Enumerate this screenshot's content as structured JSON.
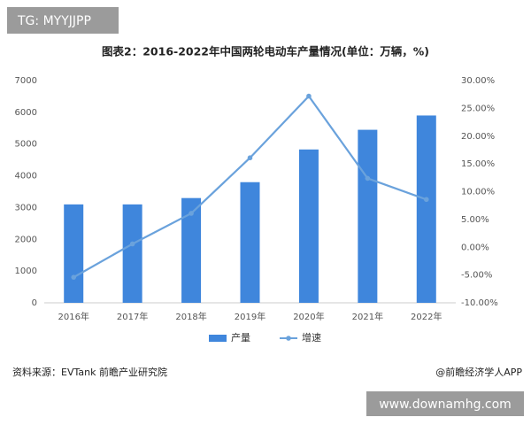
{
  "chart_data": {
    "type": "bar_line",
    "title": "图表2：2016-2022年中国两轮电动车产量情况(单位：万辆，%)",
    "categories": [
      "2016年",
      "2017年",
      "2018年",
      "2019年",
      "2020年",
      "2021年",
      "2022年"
    ],
    "series": [
      {
        "name": "产量",
        "color": "#3f86dc",
        "type": "bar",
        "values": [
          3100,
          3100,
          3300,
          3800,
          4830,
          5450,
          5900
        ]
      },
      {
        "name": "增速",
        "color": "#6aa2dc",
        "type": "line",
        "axis": "y2",
        "values": [
          -5.4,
          0.6,
          6.1,
          16.1,
          27.2,
          12.4,
          8.6
        ]
      }
    ],
    "ylim": [
      0,
      7000
    ],
    "yticks": [
      0,
      1000,
      2000,
      3000,
      4000,
      5000,
      6000,
      7000
    ],
    "y2lim": [
      -10,
      30
    ],
    "y2ticks": [
      {
        "value": -10,
        "label": "-10.00%"
      },
      {
        "value": -5,
        "label": "-5.00%"
      },
      {
        "value": 0,
        "label": "0.00%"
      },
      {
        "value": 5,
        "label": "5.00%"
      },
      {
        "value": 10,
        "label": "10.00%"
      },
      {
        "value": 15,
        "label": "15.00%"
      },
      {
        "value": 20,
        "label": "20.00%"
      },
      {
        "value": 25,
        "label": "25.00%"
      },
      {
        "value": 30,
        "label": "30.00%"
      }
    ],
    "grid": false,
    "legend": "bottom",
    "source": "资料来源：EVTank 前瞻产业研究院",
    "credit": "@前瞻经济学人APP"
  },
  "watermarks": [
    "TG: MYYJJPP",
    "www.downamhg.com"
  ]
}
